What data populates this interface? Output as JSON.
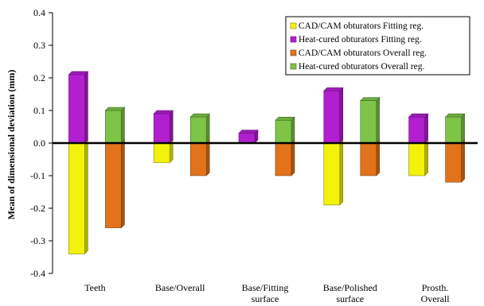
{
  "chart_data": {
    "type": "bar",
    "ylabel": "Mean of dimensional deviation (mm)",
    "xlabel": "",
    "title": "",
    "ylim": [
      -0.4,
      0.4
    ],
    "yticks": [
      "0.4",
      "0.3",
      "0.2",
      "0.1",
      "0.0",
      "-0.1",
      "-0.2",
      "-0.3",
      "-0.4"
    ],
    "grid": false,
    "legend_position": "top-right",
    "categories": [
      [
        "Teeth"
      ],
      [
        "Base/Overall"
      ],
      [
        "Base/Fitting",
        "surface"
      ],
      [
        "Base/Polished",
        "surface"
      ],
      [
        "Prosth.",
        "Overall"
      ]
    ],
    "series": [
      {
        "name": "CAD/CAM obturators Fitting reg.",
        "color": "#f2f20a",
        "values": [
          -0.34,
          -0.06,
          null,
          -0.19,
          -0.1
        ]
      },
      {
        "name": "Heat-cured obturators  Fitting reg.",
        "color": "#b21fd1",
        "values": [
          0.21,
          0.09,
          0.03,
          0.16,
          0.08
        ]
      },
      {
        "name": "CAD/CAM obturators Overall reg.",
        "color": "#e2731a",
        "values": [
          -0.26,
          -0.1,
          -0.1,
          -0.1,
          -0.12
        ]
      },
      {
        "name": "Heat-cured obturators  Overall reg.",
        "color": "#7dc447",
        "values": [
          0.1,
          0.08,
          0.07,
          0.13,
          0.08
        ]
      }
    ]
  }
}
